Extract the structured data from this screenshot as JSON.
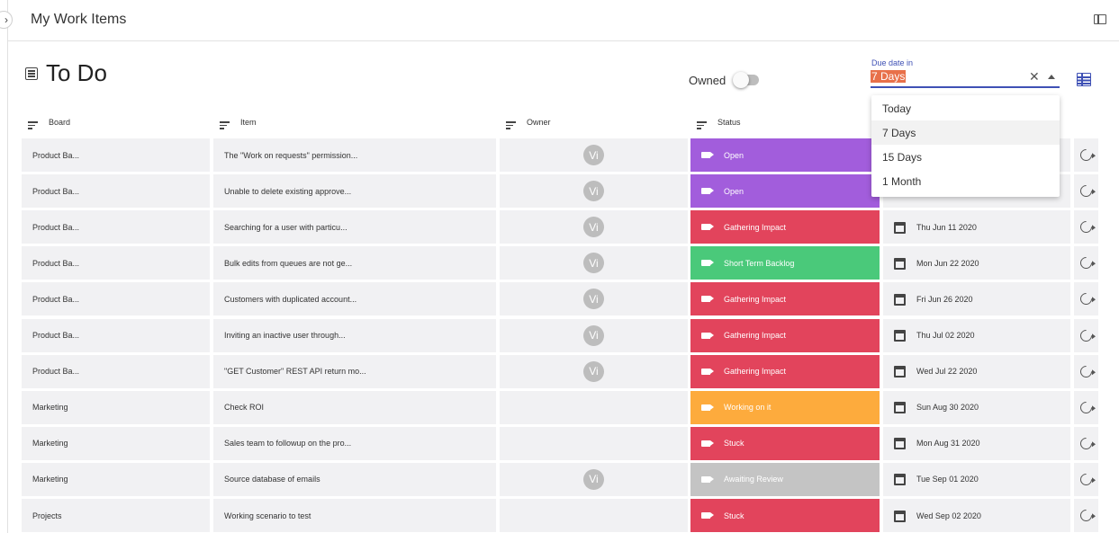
{
  "app": {
    "title": "My Work Items"
  },
  "page": {
    "title": "To Do"
  },
  "filters": {
    "owned_label": "Owned",
    "owned_on": false,
    "due_label": "Due date in",
    "due_value": "7 Days",
    "due_options": [
      "Today",
      "7 Days",
      "15 Days",
      "1 Month"
    ],
    "due_selected_index": 1
  },
  "columns": {
    "board": "Board",
    "item": "Item",
    "owner": "Owner",
    "status": "Status"
  },
  "colors": {
    "open": "#a25ddc",
    "gathering_impact": "#e2445c",
    "short_term_backlog": "#4ac97a",
    "working_on_it": "#fdab3d",
    "stuck": "#e2445c",
    "awaiting_review": "#c4c4c4",
    "accent": "#3f51b5",
    "highlight": "#e8704a"
  },
  "rows": [
    {
      "board": "Product Ba...",
      "item": "The \"Work on requests\" permission...",
      "owner": "Vi",
      "status": "Open",
      "status_color": "#a25ddc",
      "date": ""
    },
    {
      "board": "Product Ba...",
      "item": "Unable to delete existing approve...",
      "owner": "Vi",
      "status": "Open",
      "status_color": "#a25ddc",
      "date": ""
    },
    {
      "board": "Product Ba...",
      "item": "Searching for a user with particu...",
      "owner": "Vi",
      "status": "Gathering Impact",
      "status_color": "#e2445c",
      "date": "Thu Jun 11 2020"
    },
    {
      "board": "Product Ba...",
      "item": "Bulk edits from queues are not ge...",
      "owner": "Vi",
      "status": "Short Term Backlog",
      "status_color": "#4ac97a",
      "date": "Mon Jun 22 2020"
    },
    {
      "board": "Product Ba...",
      "item": "Customers with duplicated account...",
      "owner": "Vi",
      "status": "Gathering Impact",
      "status_color": "#e2445c",
      "date": "Fri Jun 26 2020"
    },
    {
      "board": "Product Ba...",
      "item": "Inviting an inactive user through...",
      "owner": "Vi",
      "status": "Gathering Impact",
      "status_color": "#e2445c",
      "date": "Thu Jul 02 2020"
    },
    {
      "board": "Product Ba...",
      "item": "\"GET Customer\" REST API return mo...",
      "owner": "Vi",
      "status": "Gathering Impact",
      "status_color": "#e2445c",
      "date": "Wed Jul 22 2020"
    },
    {
      "board": "Marketing",
      "item": "Check ROI",
      "owner": "",
      "status": "Working on it",
      "status_color": "#fdab3d",
      "date": "Sun Aug 30 2020"
    },
    {
      "board": "Marketing",
      "item": "Sales team to followup on the pro...",
      "owner": "",
      "status": "Stuck",
      "status_color": "#e2445c",
      "date": "Mon Aug 31 2020"
    },
    {
      "board": "Marketing",
      "item": "Source database of emails",
      "owner": "Vi",
      "status": "Awaiting Review",
      "status_color": "#c4c4c4",
      "date": "Tue Sep 01 2020"
    },
    {
      "board": "Projects",
      "item": "Working scenario to test",
      "owner": "",
      "status": "Stuck",
      "status_color": "#e2445c",
      "date": "Wed Sep 02 2020"
    }
  ]
}
